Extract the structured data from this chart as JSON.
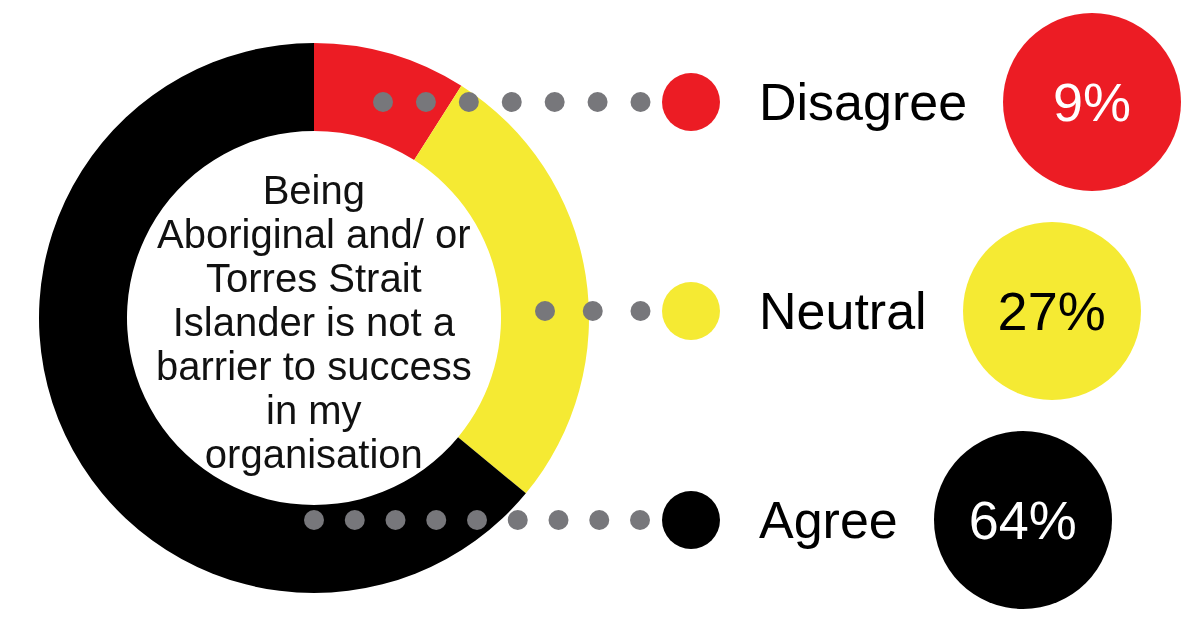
{
  "chart_data": {
    "type": "donut",
    "title": "Being Aboriginal and/ or Torres Strait Islander is not a barrier to success in my organisation",
    "categories": [
      "Disagree",
      "Neutral",
      "Agree"
    ],
    "values": [
      9,
      27,
      64
    ],
    "colors": [
      "#ec1c24",
      "#f5ea33",
      "#000000"
    ],
    "value_labels": [
      "9%",
      "27%",
      "64%"
    ],
    "legend": "right"
  }
}
